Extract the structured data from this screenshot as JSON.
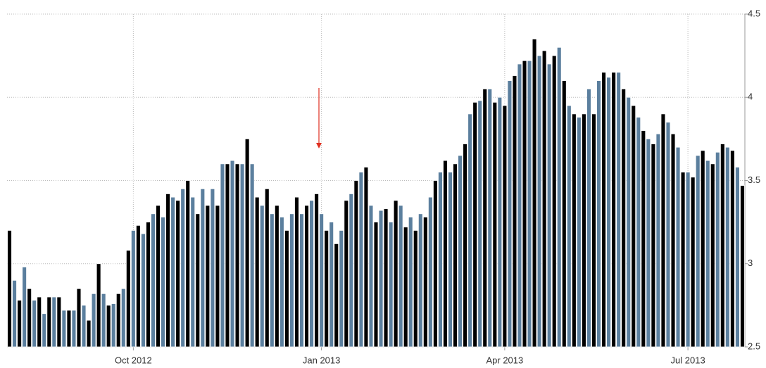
{
  "chart_data": {
    "type": "bar",
    "categories": [
      null,
      null,
      null,
      null,
      null,
      null,
      null,
      null,
      null,
      null,
      null,
      null,
      null,
      null,
      null,
      null,
      null,
      null,
      null,
      null,
      null,
      null,
      null,
      null,
      null,
      "Oct 2012",
      null,
      null,
      null,
      null,
      null,
      null,
      null,
      null,
      null,
      null,
      null,
      null,
      null,
      null,
      null,
      null,
      null,
      null,
      null,
      null,
      null,
      null,
      null,
      null,
      null,
      null,
      null,
      null,
      null,
      null,
      null,
      null,
      null,
      null,
      null,
      null,
      null,
      "Jan 2013",
      null,
      null,
      null,
      null,
      null,
      null,
      null,
      null,
      null,
      null,
      null,
      null,
      null,
      null,
      null,
      null,
      null,
      null,
      null,
      null,
      null,
      null,
      null,
      null,
      null,
      null,
      null,
      null,
      null,
      null,
      null,
      null,
      null,
      null,
      null,
      null,
      "Apr 2013",
      null,
      null,
      null,
      null,
      null,
      null,
      null,
      null,
      null,
      null,
      null,
      null,
      null,
      null,
      null,
      null,
      null,
      null,
      null,
      null,
      null,
      null,
      null,
      null,
      null,
      null,
      null,
      null,
      null,
      null,
      null,
      null,
      null,
      null,
      null,
      null,
      "Jul 2013",
      null,
      null,
      null,
      null,
      null,
      null,
      null,
      null,
      null,
      null,
      null
    ],
    "values": [
      3.2,
      2.9,
      2.78,
      2.98,
      2.85,
      2.78,
      2.8,
      2.7,
      2.8,
      2.8,
      2.8,
      2.72,
      2.72,
      2.72,
      2.85,
      2.75,
      2.66,
      2.82,
      3.0,
      2.82,
      2.75,
      2.76,
      2.82,
      2.85,
      3.08,
      3.2,
      3.23,
      3.18,
      3.25,
      3.3,
      3.35,
      3.28,
      3.42,
      3.4,
      3.38,
      3.45,
      3.5,
      3.4,
      3.3,
      3.45,
      3.35,
      3.45,
      3.35,
      3.6,
      3.6,
      3.62,
      3.6,
      3.6,
      3.75,
      3.6,
      3.4,
      3.35,
      3.45,
      3.3,
      3.35,
      3.28,
      3.2,
      3.3,
      3.4,
      3.3,
      3.35,
      3.38,
      3.42,
      3.3,
      3.2,
      3.25,
      3.12,
      3.2,
      3.38,
      3.42,
      3.5,
      3.55,
      3.58,
      3.35,
      3.25,
      3.32,
      3.33,
      3.25,
      3.38,
      3.35,
      3.22,
      3.28,
      3.2,
      3.3,
      3.28,
      3.4,
      3.5,
      3.55,
      3.62,
      3.55,
      3.6,
      3.65,
      3.72,
      3.9,
      3.97,
      3.98,
      4.05,
      4.05,
      3.97,
      4.0,
      3.95,
      4.1,
      4.13,
      4.2,
      4.22,
      4.22,
      4.35,
      4.25,
      4.28,
      4.2,
      4.25,
      4.3,
      4.1,
      3.95,
      3.9,
      3.88,
      3.9,
      4.05,
      3.9,
      4.1,
      4.15,
      4.12,
      4.15,
      4.15,
      4.05,
      4.0,
      3.95,
      3.88,
      3.8,
      3.75,
      3.72,
      3.78,
      3.9,
      3.85,
      3.78,
      3.7,
      3.55,
      3.55,
      3.52,
      3.65,
      3.68,
      3.62,
      3.6,
      3.67,
      3.72,
      3.7,
      3.68,
      3.58,
      3.47
    ],
    "colors": [
      "#000000",
      "#5b7f9e"
    ],
    "ylim": [
      2.5,
      4.5
    ],
    "yticks": [
      2.5,
      3,
      3.5,
      4,
      4.5
    ],
    "grid": true
  }
}
